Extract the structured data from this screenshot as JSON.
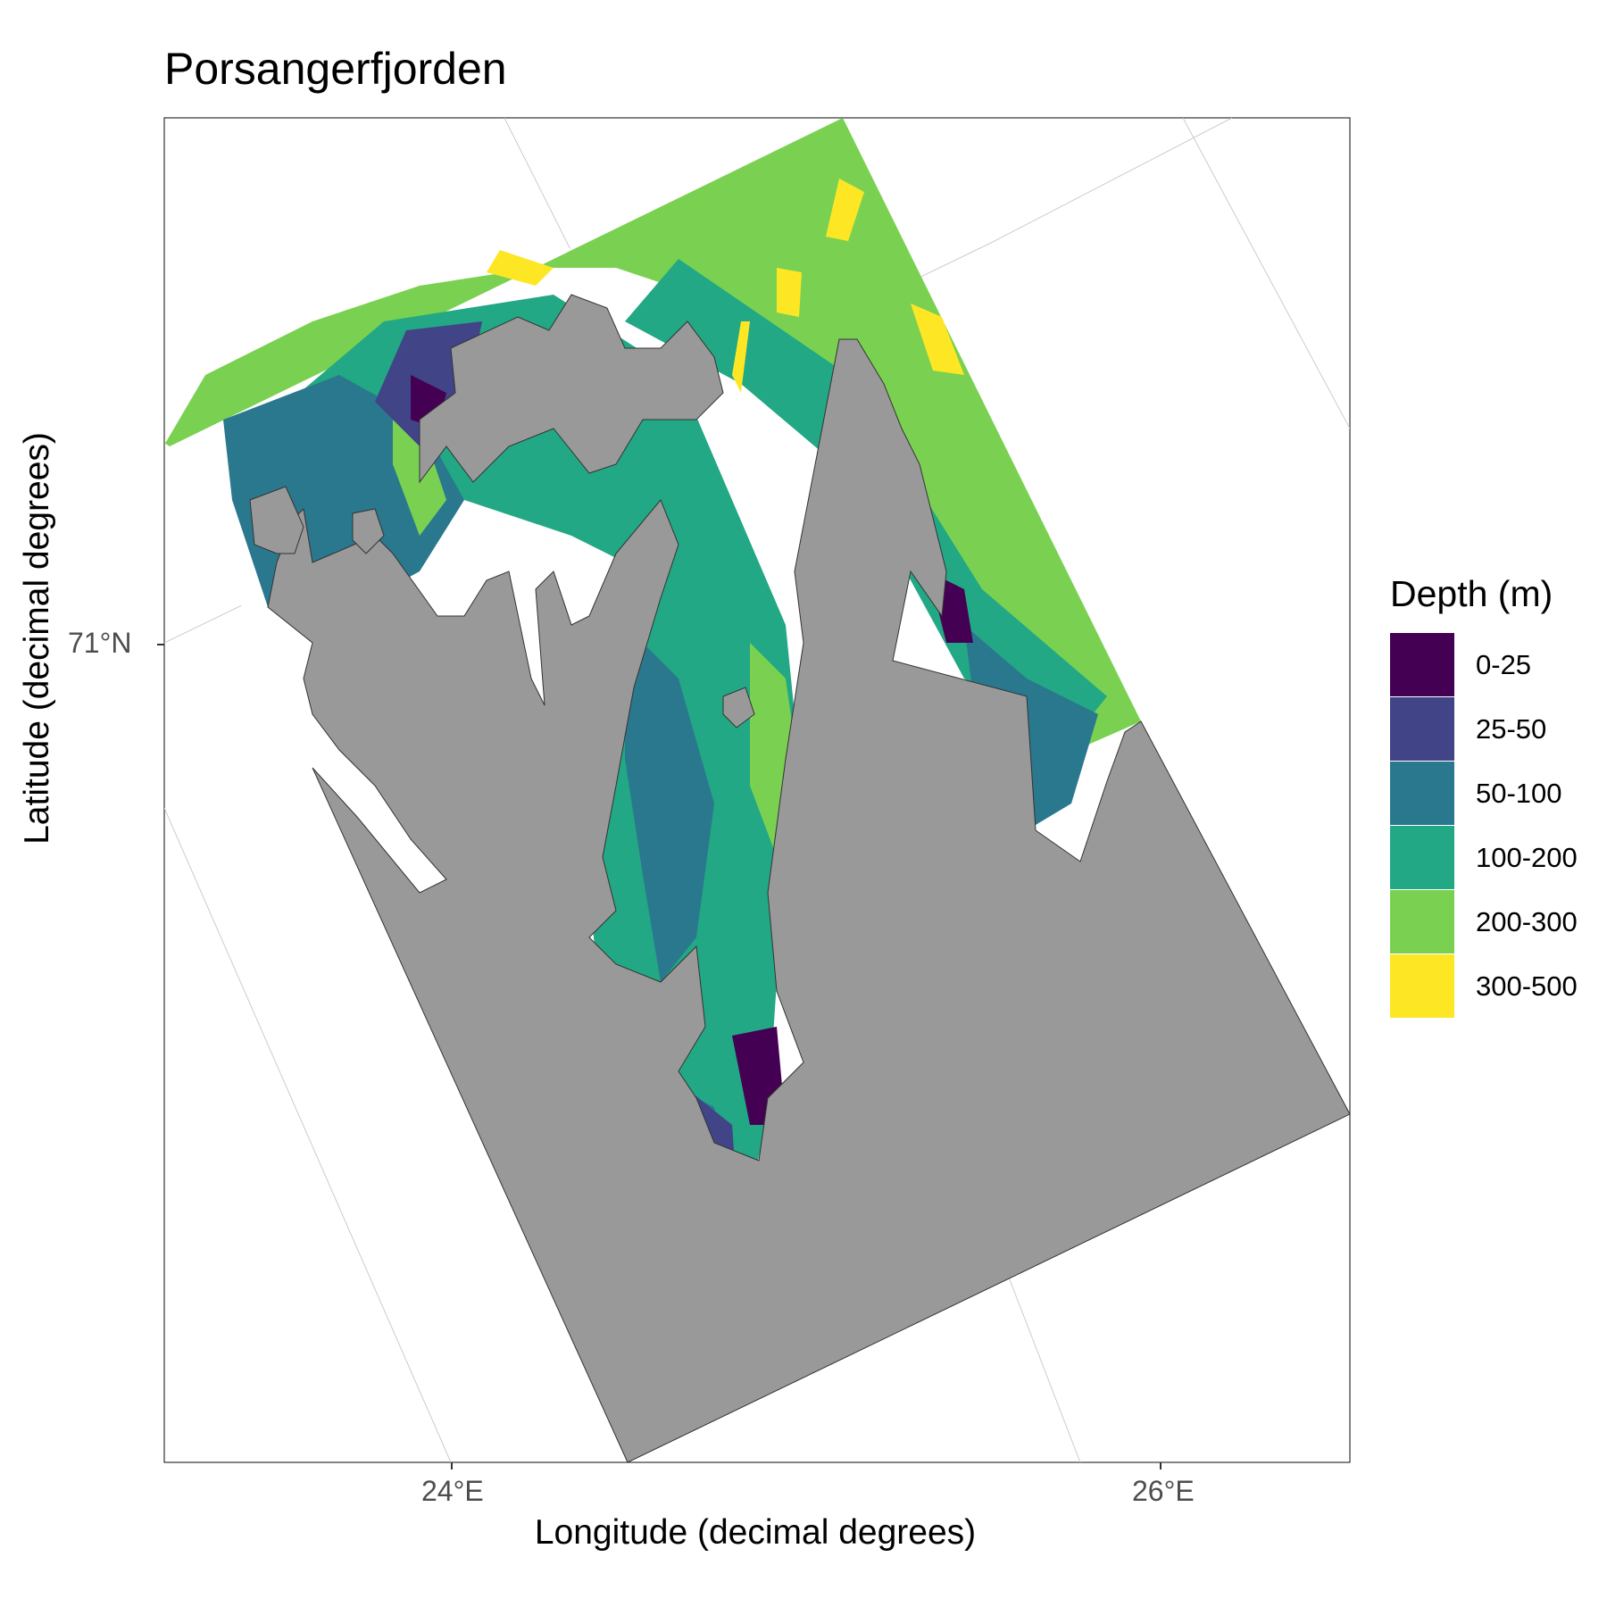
{
  "chart_data": {
    "type": "map",
    "title": "Porsangerfjorden",
    "xlabel": "Longitude (decimal degrees)",
    "ylabel": "Latitude (decimal degrees)",
    "x_ticks": [
      "24°E",
      "26°E"
    ],
    "y_ticks": [
      "71°N"
    ],
    "legend": {
      "title": "Depth (m)",
      "position": "right",
      "items": [
        {
          "label": "0-25",
          "color": "#440154"
        },
        {
          "label": "25-50",
          "color": "#414487"
        },
        {
          "label": "50-100",
          "color": "#2a788e"
        },
        {
          "label": "100-200",
          "color": "#22a884"
        },
        {
          "label": "200-300",
          "color": "#7ad151"
        },
        {
          "label": "300-500",
          "color": "#fde725"
        }
      ]
    },
    "land_color": "#999999",
    "grid": true
  }
}
